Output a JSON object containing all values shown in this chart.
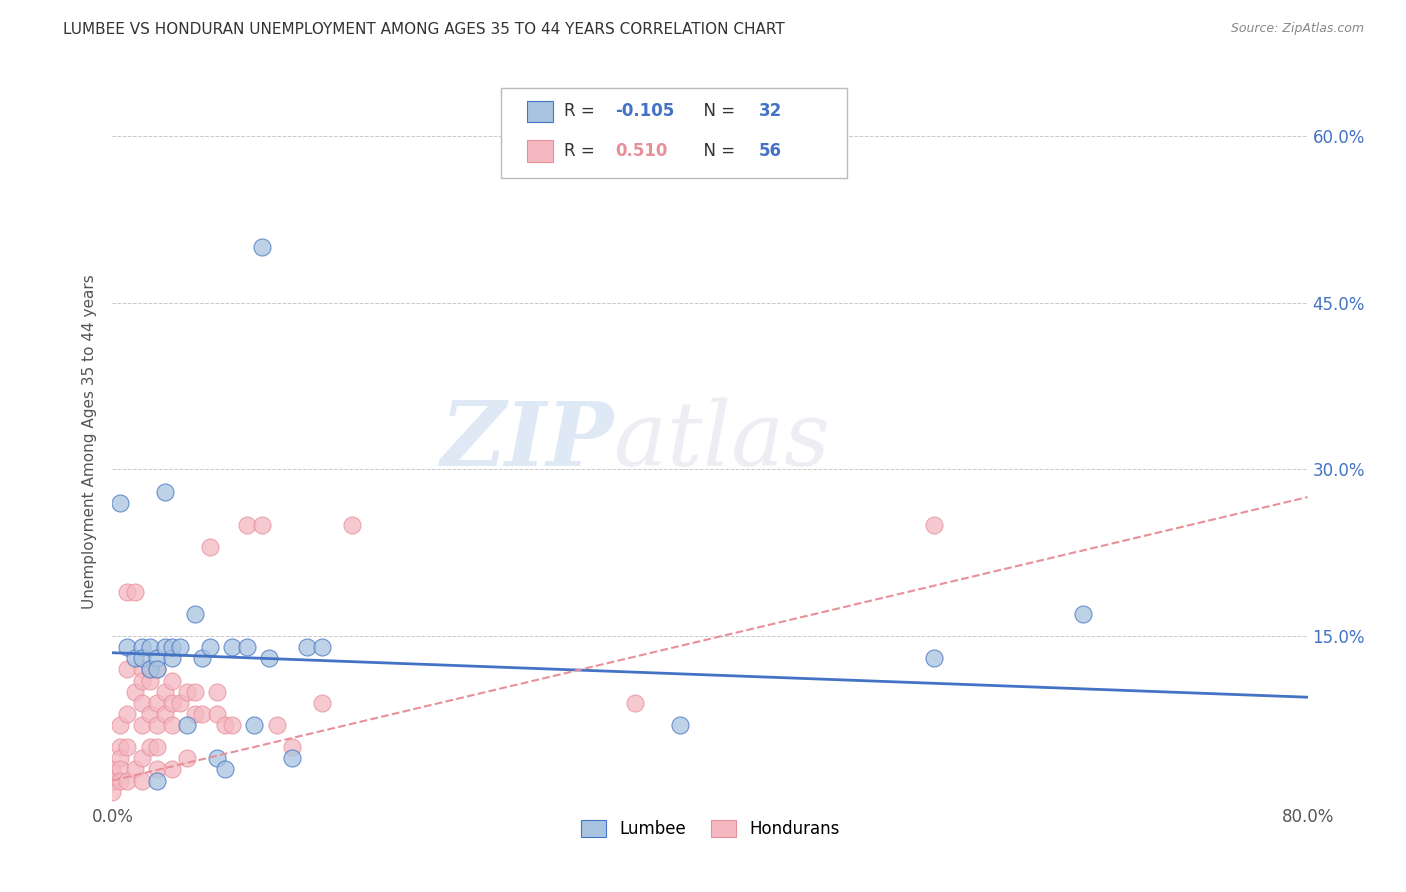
{
  "title": "LUMBEE VS HONDURAN UNEMPLOYMENT AMONG AGES 35 TO 44 YEARS CORRELATION CHART",
  "source": "Source: ZipAtlas.com",
  "ylabel": "Unemployment Among Ages 35 to 44 years",
  "xlim": [
    0.0,
    0.8
  ],
  "ylim": [
    0.0,
    0.65
  ],
  "xticks": [
    0.0,
    0.1,
    0.2,
    0.3,
    0.4,
    0.5,
    0.6,
    0.7,
    0.8
  ],
  "xticklabels": [
    "0.0%",
    "",
    "",
    "",
    "",
    "",
    "",
    "",
    "80.0%"
  ],
  "yticks": [
    0.0,
    0.15,
    0.3,
    0.45,
    0.6
  ],
  "right_yticklabels": [
    "",
    "15.0%",
    "30.0%",
    "45.0%",
    "60.0%"
  ],
  "lumbee_color": "#a8c4e0",
  "honduran_color": "#f4b8c1",
  "lumbee_line_color": "#4472c4",
  "honduran_line_color": "#e8909a",
  "lumbee_R": -0.105,
  "lumbee_N": 32,
  "honduran_R": 0.51,
  "honduran_N": 56,
  "watermark_zip": "ZIP",
  "watermark_atlas": "atlas",
  "lumbee_x": [
    0.005,
    0.01,
    0.015,
    0.02,
    0.02,
    0.025,
    0.025,
    0.03,
    0.03,
    0.03,
    0.035,
    0.035,
    0.04,
    0.04,
    0.045,
    0.05,
    0.055,
    0.06,
    0.065,
    0.07,
    0.075,
    0.08,
    0.09,
    0.095,
    0.1,
    0.105,
    0.12,
    0.13,
    0.14,
    0.38,
    0.55,
    0.65
  ],
  "lumbee_y": [
    0.27,
    0.14,
    0.13,
    0.14,
    0.13,
    0.14,
    0.12,
    0.13,
    0.12,
    0.02,
    0.14,
    0.28,
    0.13,
    0.14,
    0.14,
    0.07,
    0.17,
    0.13,
    0.14,
    0.04,
    0.03,
    0.14,
    0.14,
    0.07,
    0.5,
    0.13,
    0.04,
    0.14,
    0.14,
    0.07,
    0.13,
    0.17
  ],
  "honduran_x": [
    0.0,
    0.0,
    0.0,
    0.005,
    0.005,
    0.005,
    0.005,
    0.005,
    0.01,
    0.01,
    0.01,
    0.01,
    0.01,
    0.015,
    0.015,
    0.015,
    0.02,
    0.02,
    0.02,
    0.02,
    0.02,
    0.02,
    0.025,
    0.025,
    0.025,
    0.025,
    0.03,
    0.03,
    0.03,
    0.03,
    0.03,
    0.035,
    0.035,
    0.04,
    0.04,
    0.04,
    0.04,
    0.045,
    0.05,
    0.05,
    0.055,
    0.055,
    0.06,
    0.065,
    0.07,
    0.07,
    0.075,
    0.08,
    0.09,
    0.1,
    0.11,
    0.12,
    0.14,
    0.16,
    0.35,
    0.55
  ],
  "honduran_y": [
    0.03,
    0.02,
    0.01,
    0.07,
    0.05,
    0.04,
    0.03,
    0.02,
    0.19,
    0.12,
    0.08,
    0.05,
    0.02,
    0.19,
    0.1,
    0.03,
    0.12,
    0.11,
    0.09,
    0.07,
    0.04,
    0.02,
    0.12,
    0.11,
    0.08,
    0.05,
    0.12,
    0.09,
    0.07,
    0.05,
    0.03,
    0.1,
    0.08,
    0.11,
    0.09,
    0.07,
    0.03,
    0.09,
    0.1,
    0.04,
    0.1,
    0.08,
    0.08,
    0.23,
    0.1,
    0.08,
    0.07,
    0.07,
    0.25,
    0.25,
    0.07,
    0.05,
    0.09,
    0.25,
    0.09,
    0.25
  ],
  "lumbee_line_x": [
    0.0,
    0.8
  ],
  "lumbee_line_y": [
    0.135,
    0.095
  ],
  "honduran_line_x": [
    0.0,
    0.8
  ],
  "honduran_line_y": [
    0.02,
    0.275
  ]
}
